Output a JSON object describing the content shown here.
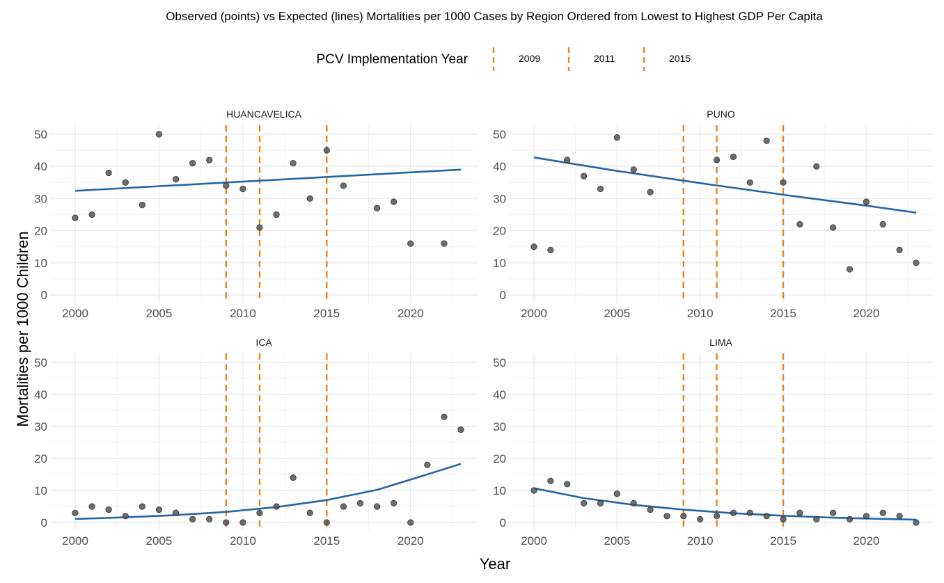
{
  "title": "Observed (points) vs Expected (lines) Mortalities per 1000 Cases by Region Ordered from Lowest to Highest GDP Per Capita",
  "legend": {
    "title": "PCV Implementation Year",
    "entries": [
      "2009",
      "2011",
      "2015"
    ],
    "position": "top"
  },
  "xlabel": "Year",
  "ylabel": "Mortalities per 1000 Children",
  "colors": {
    "points": "#555555",
    "expected_line": "#2166a6",
    "pcv_lines": "#f07f1a",
    "grid": "#ebebeb"
  },
  "chart_data": {
    "type": "scatter",
    "xlim": [
      2000,
      2023
    ],
    "ylim": [
      0,
      50
    ],
    "x_ticks": [
      2000,
      2005,
      2010,
      2015,
      2020
    ],
    "y_ticks": [
      0,
      10,
      20,
      30,
      40,
      50
    ],
    "x_tick_labels": [
      "2000",
      "2005",
      "2010",
      "2015",
      "2020"
    ],
    "y_tick_labels": [
      "0",
      "10",
      "20",
      "30",
      "40",
      "50"
    ],
    "pcv_years": [
      2009,
      2011,
      2015
    ],
    "grid": true,
    "panels": [
      {
        "name": "HUANCAVELICA",
        "observed": [
          [
            2000,
            24
          ],
          [
            2001,
            25
          ],
          [
            2002,
            38
          ],
          [
            2003,
            35
          ],
          [
            2004,
            28
          ],
          [
            2005,
            50
          ],
          [
            2006,
            36
          ],
          [
            2007,
            41
          ],
          [
            2008,
            42
          ],
          [
            2009,
            34
          ],
          [
            2010,
            33
          ],
          [
            2011,
            21
          ],
          [
            2012,
            25
          ],
          [
            2013,
            41
          ],
          [
            2014,
            30
          ],
          [
            2015,
            45
          ],
          [
            2016,
            34
          ],
          [
            2018,
            27
          ],
          [
            2019,
            29
          ],
          [
            2020,
            16
          ],
          [
            2022,
            16
          ]
        ],
        "expected": [
          [
            2000,
            32.4
          ],
          [
            2023,
            39
          ]
        ]
      },
      {
        "name": "PUNO",
        "observed": [
          [
            2000,
            15
          ],
          [
            2001,
            14
          ],
          [
            2002,
            42
          ],
          [
            2003,
            37
          ],
          [
            2004,
            33
          ],
          [
            2005,
            49
          ],
          [
            2006,
            39
          ],
          [
            2007,
            32
          ],
          [
            2011,
            42
          ],
          [
            2012,
            43
          ],
          [
            2013,
            35
          ],
          [
            2014,
            48
          ],
          [
            2015,
            35
          ],
          [
            2016,
            22
          ],
          [
            2017,
            40
          ],
          [
            2018,
            21
          ],
          [
            2019,
            8
          ],
          [
            2020,
            29
          ],
          [
            2021,
            22
          ],
          [
            2022,
            14
          ],
          [
            2023,
            10
          ]
        ],
        "expected": [
          [
            2000,
            42.8
          ],
          [
            2005,
            38.6
          ],
          [
            2010,
            34.8
          ],
          [
            2015,
            31.2
          ],
          [
            2020,
            27.8
          ],
          [
            2023,
            25.6
          ]
        ]
      },
      {
        "name": "ICA",
        "observed": [
          [
            2000,
            3
          ],
          [
            2001,
            5
          ],
          [
            2002,
            4
          ],
          [
            2003,
            2
          ],
          [
            2004,
            5
          ],
          [
            2005,
            4
          ],
          [
            2006,
            3
          ],
          [
            2007,
            1
          ],
          [
            2008,
            1
          ],
          [
            2009,
            0
          ],
          [
            2010,
            0
          ],
          [
            2011,
            3
          ],
          [
            2012,
            5
          ],
          [
            2013,
            14
          ],
          [
            2014,
            3
          ],
          [
            2015,
            0
          ],
          [
            2016,
            5
          ],
          [
            2017,
            6
          ],
          [
            2018,
            5
          ],
          [
            2019,
            6
          ],
          [
            2020,
            0
          ],
          [
            2021,
            18
          ],
          [
            2022,
            33
          ],
          [
            2023,
            29
          ]
        ],
        "expected": [
          [
            2000,
            1.1
          ],
          [
            2003,
            1.6
          ],
          [
            2006,
            2.3
          ],
          [
            2009,
            3.3
          ],
          [
            2012,
            4.8
          ],
          [
            2015,
            7
          ],
          [
            2018,
            10.2
          ],
          [
            2020,
            13.4
          ],
          [
            2023,
            18.3
          ]
        ]
      },
      {
        "name": "LIMA",
        "observed": [
          [
            2000,
            10
          ],
          [
            2001,
            13
          ],
          [
            2002,
            12
          ],
          [
            2003,
            6
          ],
          [
            2004,
            6
          ],
          [
            2005,
            9
          ],
          [
            2006,
            6
          ],
          [
            2007,
            4
          ],
          [
            2008,
            2
          ],
          [
            2009,
            2
          ],
          [
            2010,
            1
          ],
          [
            2011,
            2
          ],
          [
            2012,
            3
          ],
          [
            2013,
            3
          ],
          [
            2014,
            2
          ],
          [
            2015,
            1
          ],
          [
            2016,
            3
          ],
          [
            2017,
            1
          ],
          [
            2018,
            3
          ],
          [
            2019,
            1
          ],
          [
            2020,
            2
          ],
          [
            2021,
            3
          ],
          [
            2022,
            2
          ],
          [
            2023,
            0
          ]
        ],
        "expected": [
          [
            2000,
            10.7
          ],
          [
            2003,
            7.6
          ],
          [
            2006,
            5.5
          ],
          [
            2009,
            4
          ],
          [
            2012,
            2.9
          ],
          [
            2015,
            2.1
          ],
          [
            2018,
            1.5
          ],
          [
            2021,
            1.1
          ],
          [
            2023,
            0.9
          ]
        ]
      }
    ]
  }
}
